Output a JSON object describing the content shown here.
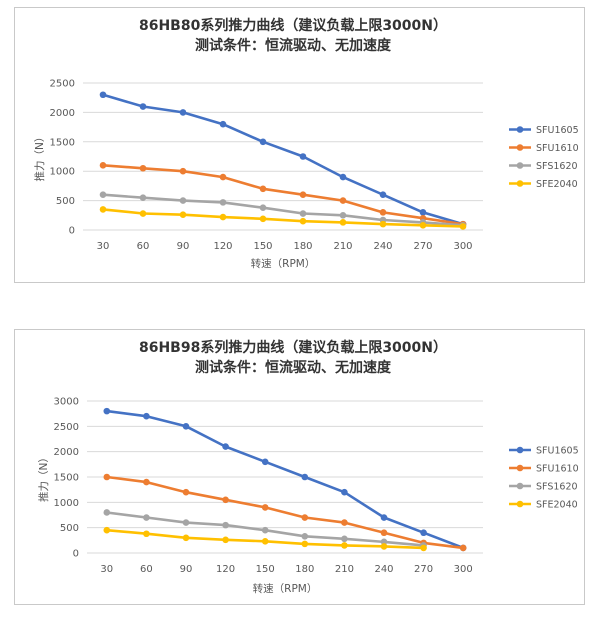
{
  "chart_data": [
    {
      "type": "line",
      "title": "86HB80系列推力曲线（建议负载上限3000N）",
      "subtitle": "测试条件：恒流驱动、无加速度",
      "xlabel": "转速（RPM）",
      "ylabel": "推力（N）",
      "categories": [
        "30",
        "60",
        "90",
        "120",
        "150",
        "180",
        "210",
        "240",
        "270",
        "300"
      ],
      "ylim": [
        0,
        2500
      ],
      "yticks": [
        0,
        500,
        1000,
        1500,
        2000,
        2500
      ],
      "grid": true,
      "legend_position": "right",
      "series": [
        {
          "name": "SFU1605",
          "color": "#4472C4",
          "values": [
            2300,
            2100,
            2000,
            1800,
            1500,
            1250,
            900,
            600,
            300,
            100
          ]
        },
        {
          "name": "SFU1610",
          "color": "#ED7D31",
          "values": [
            1100,
            1050,
            1000,
            900,
            700,
            600,
            500,
            300,
            200,
            100
          ]
        },
        {
          "name": "SFS1620",
          "color": "#A5A5A5",
          "values": [
            600,
            550,
            500,
            470,
            380,
            280,
            250,
            170,
            130,
            80
          ]
        },
        {
          "name": "SFE2040",
          "color": "#FFC000",
          "values": [
            350,
            280,
            260,
            220,
            190,
            150,
            130,
            100,
            80,
            60
          ]
        }
      ]
    },
    {
      "type": "line",
      "title": "86HB98系列推力曲线（建议负载上限3000N）",
      "subtitle": "测试条件：恒流驱动、无加速度",
      "xlabel": "转速（RPM）",
      "ylabel": "推力（N）",
      "categories": [
        "30",
        "60",
        "90",
        "120",
        "150",
        "180",
        "210",
        "240",
        "270",
        "300"
      ],
      "ylim": [
        0,
        3000
      ],
      "yticks": [
        0,
        500,
        1000,
        1500,
        2000,
        2500,
        3000
      ],
      "grid": true,
      "legend_position": "right",
      "series": [
        {
          "name": "SFU1605",
          "color": "#4472C4",
          "values": [
            2800,
            2700,
            2500,
            2100,
            1800,
            1500,
            1200,
            700,
            400,
            100
          ]
        },
        {
          "name": "SFU1610",
          "color": "#ED7D31",
          "values": [
            1500,
            1400,
            1200,
            1050,
            900,
            700,
            600,
            400,
            200,
            100
          ]
        },
        {
          "name": "SFS1620",
          "color": "#A5A5A5",
          "values": [
            800,
            700,
            600,
            550,
            450,
            330,
            280,
            220,
            150,
            null
          ]
        },
        {
          "name": "SFE2040",
          "color": "#FFC000",
          "values": [
            450,
            380,
            300,
            260,
            230,
            180,
            150,
            130,
            100,
            null
          ]
        }
      ]
    }
  ]
}
